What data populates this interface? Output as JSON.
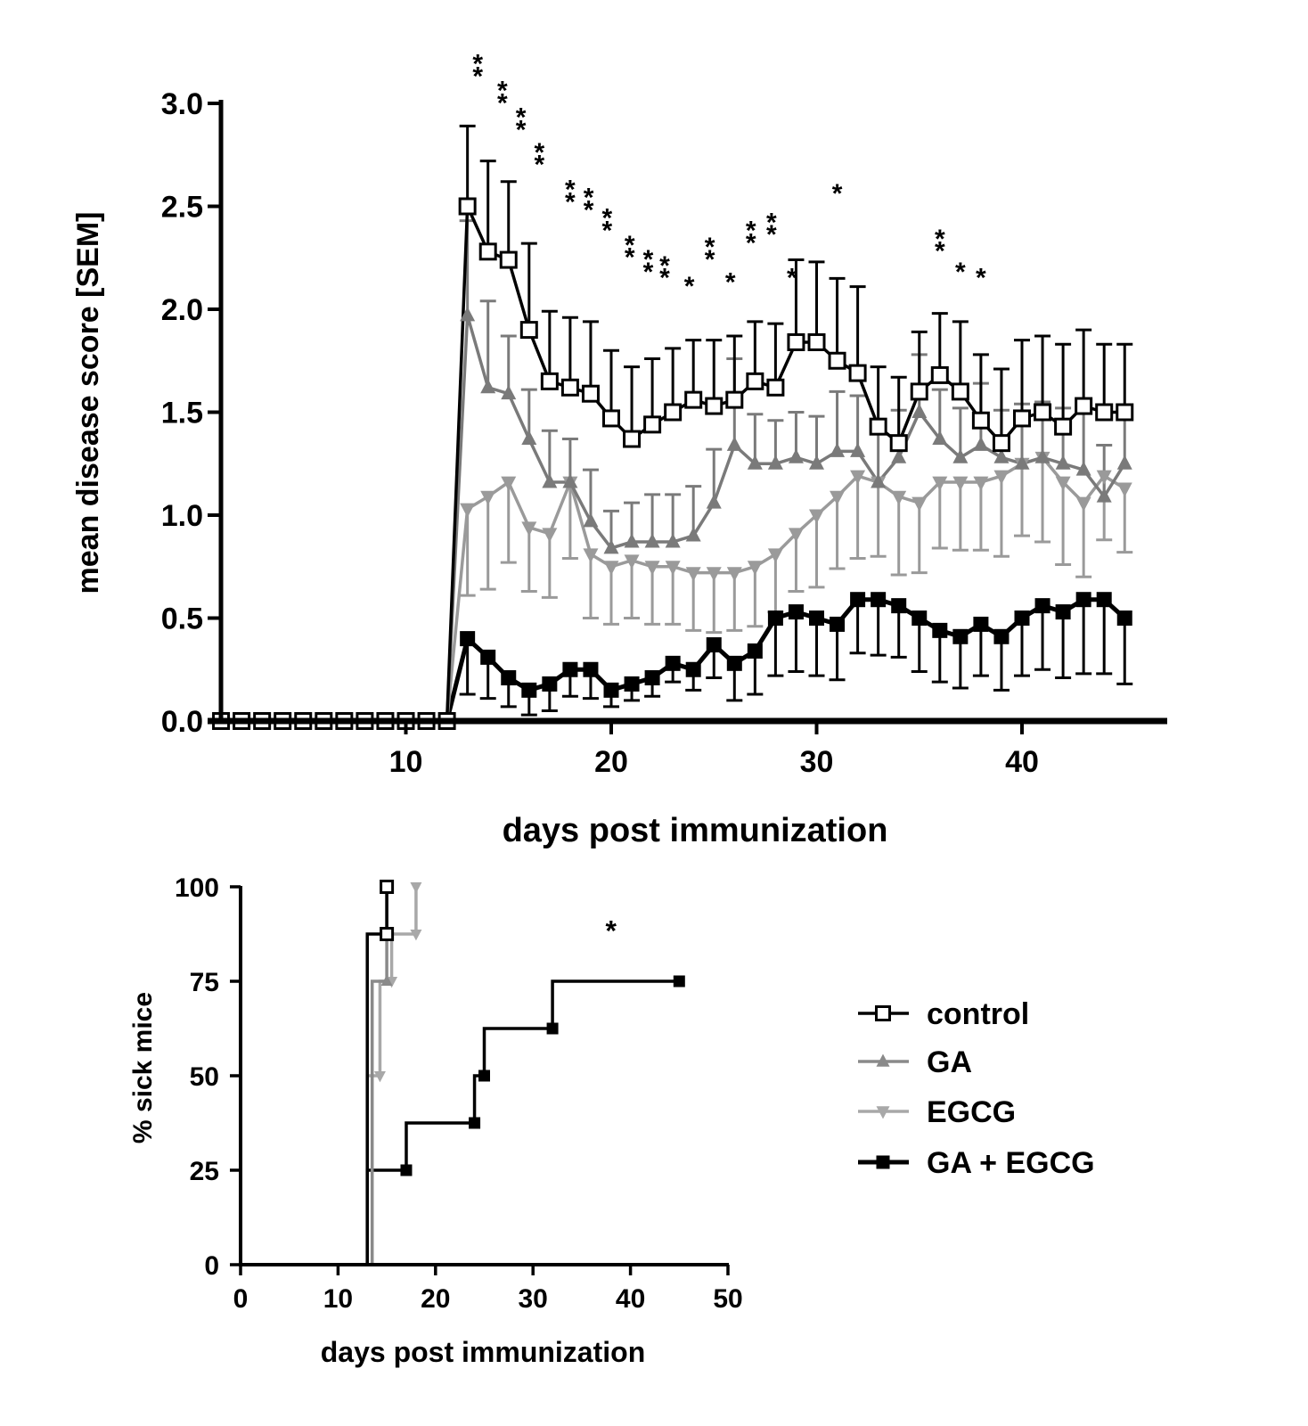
{
  "chart_data": [
    {
      "type": "line",
      "title": "",
      "xlabel": "days post immunization",
      "ylabel": "mean disease score [SEM]",
      "xlim": [
        0,
        46
      ],
      "ylim": [
        0,
        3.0
      ],
      "xticks": [
        "10",
        "20",
        "30",
        "40"
      ],
      "yticks": [
        "0.0",
        "0.5",
        "1.0",
        "1.5",
        "2.0",
        "2.5",
        "3.0"
      ],
      "x": [
        1,
        2,
        3,
        4,
        5,
        6,
        7,
        8,
        9,
        10,
        11,
        12,
        13,
        14,
        15,
        16,
        17,
        18,
        19,
        20,
        21,
        22,
        23,
        24,
        25,
        26,
        27,
        28,
        29,
        30,
        31,
        32,
        33,
        34,
        35,
        36,
        37,
        38,
        39,
        40,
        41,
        42,
        43,
        44,
        45
      ],
      "series": [
        {
          "name": "control",
          "color": "#000000",
          "marker": "open-square",
          "err_dir": "up",
          "values": [
            0,
            0,
            0,
            0,
            0,
            0,
            0,
            0,
            0,
            0,
            0,
            0,
            2.5,
            2.28,
            2.24,
            1.9,
            1.65,
            1.62,
            1.59,
            1.47,
            1.37,
            1.44,
            1.5,
            1.56,
            1.53,
            1.56,
            1.65,
            1.62,
            1.84,
            1.84,
            1.75,
            1.69,
            1.43,
            1.35,
            1.6,
            1.68,
            1.6,
            1.46,
            1.35,
            1.47,
            1.5,
            1.43,
            1.53,
            1.5,
            1.5
          ],
          "errors": [
            0,
            0,
            0,
            0,
            0,
            0,
            0,
            0,
            0,
            0,
            0,
            0,
            0.39,
            0.44,
            0.38,
            0.42,
            0.34,
            0.34,
            0.35,
            0.33,
            0.35,
            0.32,
            0.31,
            0.29,
            0.32,
            0.31,
            0.29,
            0.31,
            0.4,
            0.39,
            0.4,
            0.42,
            0.29,
            0.32,
            0.29,
            0.3,
            0.34,
            0.32,
            0.36,
            0.38,
            0.37,
            0.4,
            0.37,
            0.33,
            0.33
          ]
        },
        {
          "name": "GA",
          "color": "#7a7a7a",
          "marker": "triangle-up",
          "err_dir": "up",
          "values": [
            0,
            0,
            0,
            0,
            0,
            0,
            0,
            0,
            0,
            0,
            0,
            0,
            1.97,
            1.62,
            1.59,
            1.37,
            1.16,
            1.16,
            0.97,
            0.84,
            0.87,
            0.87,
            0.87,
            0.9,
            1.06,
            1.34,
            1.25,
            1.25,
            1.28,
            1.25,
            1.31,
            1.31,
            1.16,
            1.28,
            1.5,
            1.37,
            1.28,
            1.34,
            1.28,
            1.25,
            1.28,
            1.25,
            1.22,
            1.09,
            1.25
          ],
          "errors": [
            0,
            0,
            0,
            0,
            0,
            0,
            0,
            0,
            0,
            0,
            0,
            0,
            0.46,
            0.42,
            0.28,
            0.24,
            0.25,
            0.21,
            0.25,
            0.18,
            0.19,
            0.23,
            0.23,
            0.24,
            0.26,
            0.42,
            0.24,
            0.21,
            0.22,
            0.23,
            0.29,
            0.27,
            0.24,
            0.23,
            0.28,
            0.24,
            0.24,
            0.3,
            0.23,
            0.29,
            0.27,
            0.27,
            0.3,
            0.25,
            0.25
          ]
        },
        {
          "name": "EGCG",
          "color": "#9a9a9a",
          "marker": "triangle-down",
          "err_dir": "down",
          "values": [
            0,
            0,
            0,
            0,
            0,
            0,
            0,
            0,
            0,
            0,
            0,
            0,
            1.03,
            1.09,
            1.16,
            0.94,
            0.91,
            1.16,
            0.81,
            0.75,
            0.78,
            0.75,
            0.75,
            0.72,
            0.72,
            0.72,
            0.75,
            0.81,
            0.91,
            1.0,
            1.09,
            1.19,
            1.16,
            1.09,
            1.06,
            1.16,
            1.16,
            1.16,
            1.19,
            1.25,
            1.28,
            1.16,
            1.06,
            1.19,
            1.13
          ],
          "errors": [
            0,
            0,
            0,
            0,
            0,
            0,
            0,
            0,
            0,
            0,
            0,
            0,
            0.42,
            0.45,
            0.39,
            0.31,
            0.31,
            0.37,
            0.31,
            0.28,
            0.28,
            0.28,
            0.28,
            0.28,
            0.29,
            0.28,
            0.29,
            0.28,
            0.28,
            0.35,
            0.35,
            0.4,
            0.36,
            0.38,
            0.34,
            0.32,
            0.33,
            0.33,
            0.39,
            0.35,
            0.41,
            0.4,
            0.36,
            0.31,
            0.31
          ]
        },
        {
          "name": "GA + EGCG",
          "color": "#000000",
          "marker": "filled-square",
          "err_dir": "down",
          "values": [
            0,
            0,
            0,
            0,
            0,
            0,
            0,
            0,
            0,
            0,
            0,
            0,
            0.4,
            0.31,
            0.21,
            0.15,
            0.18,
            0.25,
            0.25,
            0.15,
            0.18,
            0.21,
            0.28,
            0.25,
            0.37,
            0.28,
            0.34,
            0.5,
            0.53,
            0.5,
            0.47,
            0.59,
            0.59,
            0.56,
            0.5,
            0.44,
            0.41,
            0.47,
            0.41,
            0.5,
            0.56,
            0.53,
            0.59,
            0.59,
            0.5
          ],
          "errors": [
            0,
            0,
            0,
            0,
            0,
            0,
            0,
            0,
            0,
            0,
            0,
            0,
            0.27,
            0.2,
            0.14,
            0.12,
            0.13,
            0.13,
            0.14,
            0.08,
            0.08,
            0.09,
            0.09,
            0.1,
            0.16,
            0.18,
            0.21,
            0.28,
            0.29,
            0.28,
            0.27,
            0.26,
            0.27,
            0.25,
            0.26,
            0.25,
            0.25,
            0.25,
            0.26,
            0.28,
            0.31,
            0.32,
            0.36,
            0.36,
            0.32
          ]
        }
      ],
      "annotations": [
        {
          "x": 13.5,
          "y": 3.21,
          "text": "*"
        },
        {
          "x": 13.5,
          "y": 3.15,
          "text": "*"
        },
        {
          "x": 14.7,
          "y": 3.08,
          "text": "*"
        },
        {
          "x": 14.7,
          "y": 3.02,
          "text": "*"
        },
        {
          "x": 15.6,
          "y": 2.95,
          "text": "*"
        },
        {
          "x": 15.6,
          "y": 2.89,
          "text": "*"
        },
        {
          "x": 16.5,
          "y": 2.78,
          "text": "*"
        },
        {
          "x": 16.5,
          "y": 2.72,
          "text": "*"
        },
        {
          "x": 18.0,
          "y": 2.6,
          "text": "*"
        },
        {
          "x": 18.0,
          "y": 2.54,
          "text": "*"
        },
        {
          "x": 18.9,
          "y": 2.56,
          "text": "*"
        },
        {
          "x": 18.9,
          "y": 2.5,
          "text": "*"
        },
        {
          "x": 19.8,
          "y": 2.46,
          "text": "*"
        },
        {
          "x": 19.8,
          "y": 2.4,
          "text": "*"
        },
        {
          "x": 20.9,
          "y": 2.33,
          "text": "*"
        },
        {
          "x": 20.9,
          "y": 2.27,
          "text": "*"
        },
        {
          "x": 21.8,
          "y": 2.26,
          "text": "*"
        },
        {
          "x": 21.8,
          "y": 2.2,
          "text": "*"
        },
        {
          "x": 22.6,
          "y": 2.23,
          "text": "*"
        },
        {
          "x": 22.6,
          "y": 2.17,
          "text": "*"
        },
        {
          "x": 23.8,
          "y": 2.13,
          "text": "*"
        },
        {
          "x": 24.8,
          "y": 2.32,
          "text": "*"
        },
        {
          "x": 24.8,
          "y": 2.26,
          "text": "*"
        },
        {
          "x": 25.8,
          "y": 2.15,
          "text": "*"
        },
        {
          "x": 26.8,
          "y": 2.4,
          "text": "*"
        },
        {
          "x": 26.8,
          "y": 2.34,
          "text": "*"
        },
        {
          "x": 27.8,
          "y": 2.44,
          "text": "*"
        },
        {
          "x": 27.8,
          "y": 2.38,
          "text": "*"
        },
        {
          "x": 28.8,
          "y": 2.17,
          "text": "*"
        },
        {
          "x": 31.0,
          "y": 2.58,
          "text": "*"
        },
        {
          "x": 36.0,
          "y": 2.36,
          "text": "*"
        },
        {
          "x": 36.0,
          "y": 2.3,
          "text": "*"
        },
        {
          "x": 37.0,
          "y": 2.2,
          "text": "*"
        },
        {
          "x": 38.0,
          "y": 2.17,
          "text": "*"
        }
      ]
    },
    {
      "type": "line",
      "subtype": "step",
      "title": "",
      "xlabel": "days post immunization",
      "ylabel": "% sick mice",
      "xlim": [
        0,
        50
      ],
      "ylim": [
        0,
        100
      ],
      "xticks": [
        "0",
        "10",
        "20",
        "30",
        "40",
        "50"
      ],
      "yticks": [
        "0",
        "25",
        "50",
        "75",
        "100"
      ],
      "series": [
        {
          "name": "control",
          "color": "#000000",
          "marker": "open-square",
          "points": [
            [
              13,
              0
            ],
            [
              13,
              87.5
            ],
            [
              15,
              87.5
            ],
            [
              15,
              100
            ]
          ]
        },
        {
          "name": "GA",
          "color": "#8a8a8a",
          "marker": "triangle-up",
          "points": [
            [
              13.5,
              0
            ],
            [
              13.5,
              75
            ],
            [
              15,
              75
            ],
            [
              15,
              100
            ]
          ]
        },
        {
          "name": "EGCG",
          "color": "#a8a8a8",
          "marker": "triangle-down",
          "points": [
            [
              13,
              0
            ],
            [
              13,
              50
            ],
            [
              14.3,
              50
            ],
            [
              14.3,
              75
            ],
            [
              15.5,
              75
            ],
            [
              15.5,
              87.5
            ],
            [
              18,
              87.5
            ],
            [
              18,
              100
            ]
          ]
        },
        {
          "name": "GA + EGCG",
          "color": "#000000",
          "marker": "filled-square",
          "points": [
            [
              13,
              0
            ],
            [
              13,
              25
            ],
            [
              17,
              25
            ],
            [
              17,
              37.5
            ],
            [
              24,
              37.5
            ],
            [
              24,
              50
            ],
            [
              25,
              50
            ],
            [
              25,
              62.5
            ],
            [
              32,
              62.5
            ],
            [
              32,
              75
            ],
            [
              45,
              75
            ]
          ]
        }
      ],
      "annotations": [
        {
          "x": 38,
          "y": 89,
          "text": "*"
        }
      ],
      "legend": {
        "placement": "right",
        "entries": [
          "control",
          "GA",
          "EGCG",
          "GA + EGCG"
        ]
      }
    }
  ]
}
